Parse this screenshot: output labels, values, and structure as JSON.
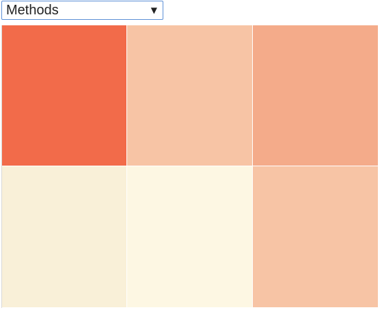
{
  "dropdown": {
    "selected_label": "Methods",
    "arrow_icon": "triangle-down"
  },
  "heatmap": {
    "cells": [
      {
        "color": "#f26b4a"
      },
      {
        "color": "#f7c4a5"
      },
      {
        "color": "#f4ab8a"
      },
      {
        "color": "#f9f0d8"
      },
      {
        "color": "#fdf7e3"
      },
      {
        "color": "#f7c4a5"
      }
    ]
  }
}
